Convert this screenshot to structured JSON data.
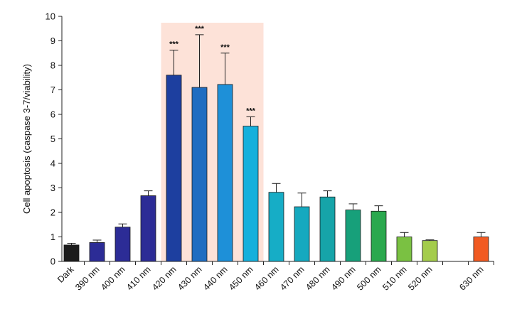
{
  "chart_data": {
    "type": "bar",
    "ylabel": "Cell apoptosis (caspase 3-7/viability)",
    "ylim": [
      0,
      10
    ],
    "yticks": [
      0,
      1,
      2,
      3,
      4,
      5,
      6,
      7,
      8,
      9,
      10
    ],
    "grid": false,
    "categories": [
      "Dark",
      "390 nm",
      "400 nm",
      "410 nm",
      "420 nm",
      "430 nm",
      "440 nm",
      "450 nm",
      "460 nm",
      "470 nm",
      "480 nm",
      "490 nm",
      "500 nm",
      "510 nm",
      "520 nm",
      "630 nm"
    ],
    "values": [
      0.67,
      0.77,
      1.4,
      2.68,
      7.6,
      7.1,
      7.22,
      5.52,
      2.82,
      2.23,
      2.63,
      2.1,
      2.05,
      1.0,
      0.85,
      1.0
    ],
    "errors": [
      0.07,
      0.1,
      0.13,
      0.2,
      1.02,
      2.15,
      1.28,
      0.38,
      0.36,
      0.56,
      0.25,
      0.25,
      0.22,
      0.18,
      0.03,
      0.18
    ],
    "annotations": [
      "",
      "",
      "",
      "",
      "***",
      "***",
      "***",
      "***",
      "",
      "",
      "",
      "",
      "",
      "",
      "",
      ""
    ],
    "colors": [
      "#1b1b1b",
      "#2c2c96",
      "#2c2c96",
      "#2c2c96",
      "#1d3f9f",
      "#1f6dc1",
      "#1e90d8",
      "#15b0dc",
      "#16adc6",
      "#15a9bf",
      "#16a4a9",
      "#17a07a",
      "#2aa84e",
      "#7ac142",
      "#a4cc4c",
      "#f15a22"
    ],
    "highlight_range": [
      "420 nm",
      "450 nm"
    ],
    "highlight_color": "#fde2d8"
  }
}
